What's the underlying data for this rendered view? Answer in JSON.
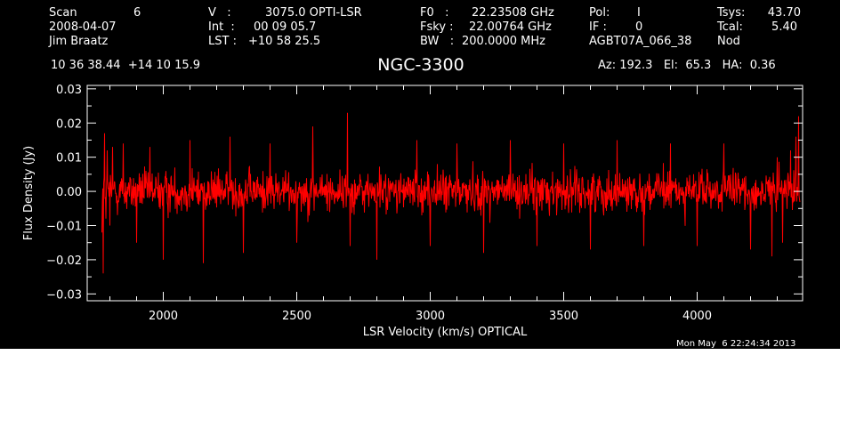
{
  "header": {
    "scan_label": "Scan",
    "scan_value": "6",
    "date": "2008-04-07",
    "observer": "Jim Braatz",
    "v_label": "V   :",
    "v_value": "3075.0 OPTI-LSR",
    "int_label": "Int  :",
    "int_value": "00 09 05.7",
    "lst_label": "LST :",
    "lst_value": "+10 58 25.5",
    "f0_label": "F0   :",
    "f0_value": "22.23508 GHz",
    "fsky_label": "Fsky :",
    "fsky_value": "22.00764 GHz",
    "bw_label": "BW   :",
    "bw_value": "200.0000 MHz",
    "pol_label": "Pol:",
    "pol_value": "I",
    "if_label": "IF :",
    "if_value": "0",
    "project": "AGBT07A_066_38",
    "tsys_label": "Tsys:",
    "tsys_value": "43.70",
    "tcal_label": "Tcal:",
    "tcal_value": "5.40",
    "mode": "Nod",
    "coords": "10 36 38.44  +14 10 15.9",
    "az_el_ha": "Az: 192.3   El:  65.3   HA:  0.36",
    "timestamp": "Mon May  6 22:24:34 2013"
  },
  "chart_data": {
    "type": "line",
    "title": "NGC-3300",
    "xlabel": "LSR Velocity (km/s) OPTICAL",
    "ylabel": "Flux Density (Jy)",
    "xlim": [
      1715,
      4395
    ],
    "ylim": [
      -0.032,
      0.031
    ],
    "xticks": [
      2000,
      2500,
      3000,
      3500,
      4000
    ],
    "xtick_labels": [
      "2000",
      "2500",
      "3000",
      "3500",
      "4000"
    ],
    "yticks": [
      -0.03,
      -0.02,
      -0.01,
      0.0,
      0.01,
      0.02,
      0.03
    ],
    "ytick_labels": [
      "−0.03",
      "−0.02",
      "−0.01",
      "0.00",
      "0.01",
      "0.02",
      "0.03"
    ],
    "grid": false,
    "background": "#000000",
    "axis_color": "#ffffff",
    "series": [
      {
        "color": "#ff0000",
        "x_start": 1770,
        "x_end": 4385,
        "baseline": 0.0,
        "noise_rms": 0.006,
        "values": [
          [
            1770,
            -0.012
          ],
          [
            1775,
            -0.024
          ],
          [
            1780,
            0.017
          ],
          [
            1785,
            -0.008
          ],
          [
            1790,
            0.012
          ],
          [
            1800,
            -0.01
          ],
          [
            1810,
            0.013
          ],
          [
            1850,
            0.014
          ],
          [
            1900,
            -0.015
          ],
          [
            1950,
            0.013
          ],
          [
            2000,
            -0.02
          ],
          [
            2100,
            0.015
          ],
          [
            2150,
            -0.021
          ],
          [
            2250,
            0.016
          ],
          [
            2300,
            -0.018
          ],
          [
            2400,
            0.014
          ],
          [
            2500,
            -0.015
          ],
          [
            2560,
            0.019
          ],
          [
            2690,
            0.023
          ],
          [
            2700,
            -0.016
          ],
          [
            2800,
            -0.02
          ],
          [
            2950,
            0.015
          ],
          [
            3000,
            -0.016
          ],
          [
            3100,
            0.014
          ],
          [
            3200,
            -0.018
          ],
          [
            3300,
            0.015
          ],
          [
            3400,
            -0.016
          ],
          [
            3500,
            0.014
          ],
          [
            3600,
            -0.017
          ],
          [
            3700,
            0.015
          ],
          [
            3800,
            -0.016
          ],
          [
            3900,
            0.014
          ],
          [
            4000,
            -0.016
          ],
          [
            4100,
            0.014
          ],
          [
            4200,
            -0.017
          ],
          [
            4280,
            -0.019
          ],
          [
            4300,
            0.01
          ],
          [
            4320,
            -0.015
          ],
          [
            4350,
            0.012
          ],
          [
            4370,
            0.016
          ],
          [
            4380,
            0.022
          ]
        ]
      }
    ]
  }
}
